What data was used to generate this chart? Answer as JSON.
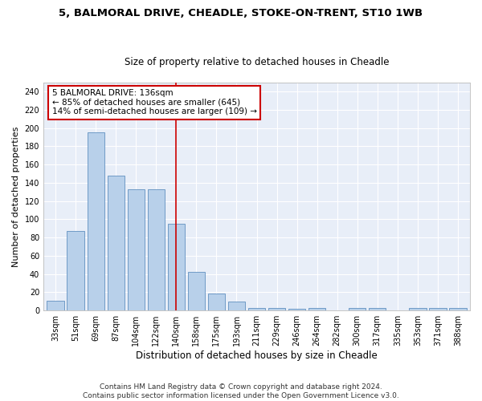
{
  "title1": "5, BALMORAL DRIVE, CHEADLE, STOKE-ON-TRENT, ST10 1WB",
  "title2": "Size of property relative to detached houses in Cheadle",
  "xlabel": "Distribution of detached houses by size in Cheadle",
  "ylabel": "Number of detached properties",
  "categories": [
    "33sqm",
    "51sqm",
    "69sqm",
    "87sqm",
    "104sqm",
    "122sqm",
    "140sqm",
    "158sqm",
    "175sqm",
    "193sqm",
    "211sqm",
    "229sqm",
    "246sqm",
    "264sqm",
    "282sqm",
    "300sqm",
    "317sqm",
    "335sqm",
    "353sqm",
    "371sqm",
    "388sqm"
  ],
  "values": [
    11,
    87,
    195,
    148,
    133,
    133,
    95,
    42,
    19,
    10,
    3,
    3,
    2,
    3,
    0,
    3,
    3,
    0,
    3,
    3,
    3
  ],
  "bar_color": "#b8d0ea",
  "bar_edge_color": "#6090c0",
  "vline_x_index": 6,
  "vline_color": "#cc0000",
  "annotation_text": "5 BALMORAL DRIVE: 136sqm\n← 85% of detached houses are smaller (645)\n14% of semi-detached houses are larger (109) →",
  "annotation_box_color": "#ffffff",
  "annotation_box_edge": "#cc0000",
  "ylim": [
    0,
    250
  ],
  "yticks": [
    0,
    20,
    40,
    60,
    80,
    100,
    120,
    140,
    160,
    180,
    200,
    220,
    240
  ],
  "footer": "Contains HM Land Registry data © Crown copyright and database right 2024.\nContains public sector information licensed under the Open Government Licence v3.0.",
  "bg_color": "#e8eef8",
  "grid_color": "#ffffff",
  "fig_bg_color": "#ffffff",
  "title1_fontsize": 9.5,
  "title2_fontsize": 8.5,
  "xlabel_fontsize": 8.5,
  "ylabel_fontsize": 8,
  "tick_fontsize": 7,
  "annotation_fontsize": 7.5,
  "footer_fontsize": 6.5
}
